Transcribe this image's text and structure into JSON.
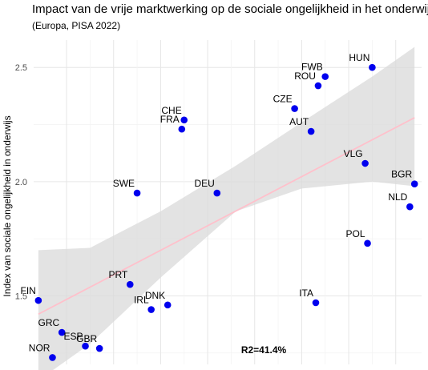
{
  "chart_data": {
    "type": "scatter",
    "title": "Impact van de vrije marktwerking op de sociale ongelijkheid in het onderwijs",
    "subtitle": "(Europa, PISA 2022)",
    "xlabel": "",
    "ylabel": "Index van sociale ongelijkheid in onderwijs",
    "x_ticks_labeled": false,
    "x_gridlines": [
      1,
      2,
      3,
      4,
      5,
      6,
      7,
      8
    ],
    "xlim": [
      0.3,
      8.55
    ],
    "ylim": [
      1.2,
      2.62
    ],
    "y_ticks": [
      1.5,
      2.0,
      2.5
    ],
    "y_tick_labels": [
      "1.5",
      "2.0",
      "2.5"
    ],
    "grid": true,
    "point_color": "#0000ee",
    "trend_color": "#ffc0cb",
    "band_color": "#d9d9d9",
    "points": [
      {
        "label": "HUN",
        "x": 7.5,
        "y": 2.5
      },
      {
        "label": "FWB",
        "x": 6.5,
        "y": 2.46
      },
      {
        "label": "ROU",
        "x": 6.35,
        "y": 2.42
      },
      {
        "label": "CZE",
        "x": 5.85,
        "y": 2.32
      },
      {
        "label": "AUT",
        "x": 6.2,
        "y": 2.22
      },
      {
        "label": "CHE",
        "x": 3.5,
        "y": 2.27
      },
      {
        "label": "FRA",
        "x": 3.45,
        "y": 2.23
      },
      {
        "label": "VLG",
        "x": 7.35,
        "y": 2.08
      },
      {
        "label": "BGR",
        "x": 8.4,
        "y": 1.99
      },
      {
        "label": "NLD",
        "x": 8.3,
        "y": 1.89
      },
      {
        "label": "SWE",
        "x": 2.5,
        "y": 1.95
      },
      {
        "label": "DEU",
        "x": 4.2,
        "y": 1.95
      },
      {
        "label": "POL",
        "x": 7.4,
        "y": 1.73
      },
      {
        "label": "PRT",
        "x": 2.35,
        "y": 1.55
      },
      {
        "label": "FIN",
        "x": 0.4,
        "y": 1.48
      },
      {
        "label": "ITA",
        "x": 6.3,
        "y": 1.47
      },
      {
        "label": "DNK",
        "x": 3.15,
        "y": 1.46
      },
      {
        "label": "IRL",
        "x": 2.8,
        "y": 1.44
      },
      {
        "label": "GRC",
        "x": 0.9,
        "y": 1.34
      },
      {
        "label": "ESP",
        "x": 1.4,
        "y": 1.28
      },
      {
        "label": "GBR",
        "x": 1.7,
        "y": 1.27
      },
      {
        "label": "NOR",
        "x": 0.7,
        "y": 1.23
      }
    ],
    "trend_line": {
      "x": [
        0.4,
        8.4
      ],
      "y": [
        1.42,
        2.28
      ]
    },
    "confidence_band": {
      "x": [
        0.4,
        1.5,
        3.0,
        4.6,
        6.0,
        7.5,
        8.4
      ],
      "upper": [
        1.7,
        1.71,
        1.87,
        2.07,
        2.26,
        2.46,
        2.59
      ],
      "lower": [
        1.13,
        1.29,
        1.58,
        1.87,
        1.97,
        2.0,
        1.98
      ]
    },
    "annotation": "R2=41.4%"
  }
}
